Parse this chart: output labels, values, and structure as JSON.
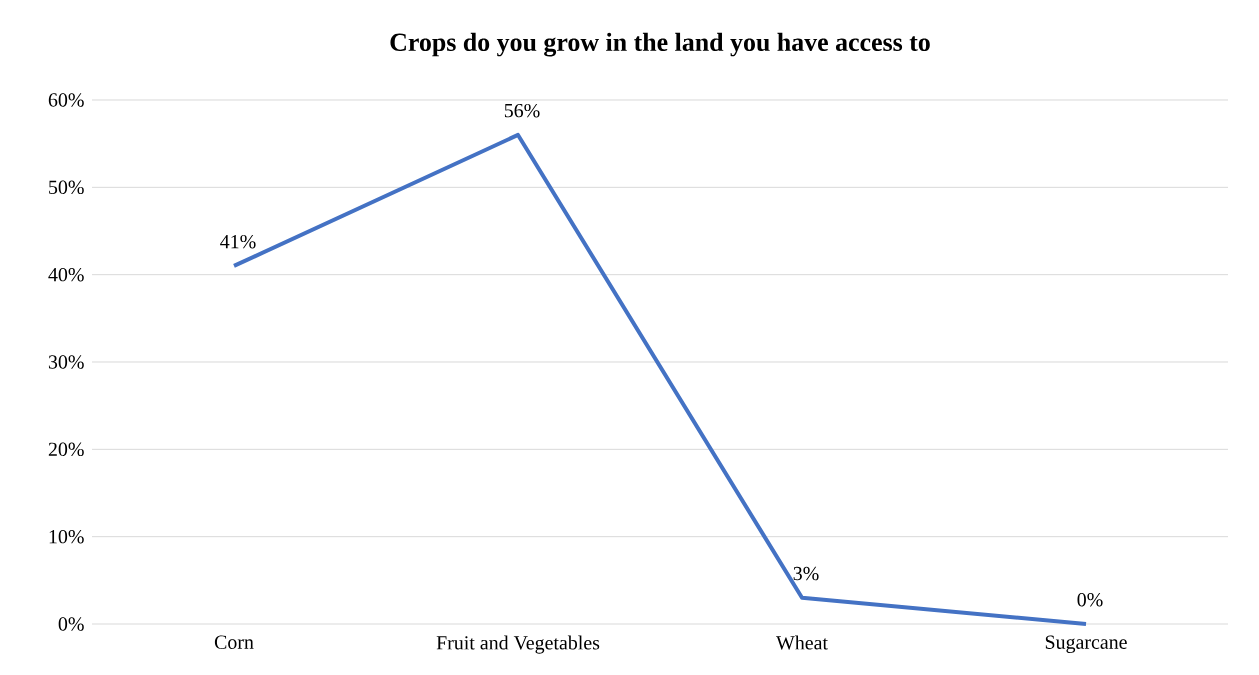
{
  "chart_data": {
    "type": "line",
    "title": "Crops do you grow in the land you have access to",
    "categories": [
      "Corn",
      "Fruit and Vegetables",
      "Wheat",
      "Sugarcane"
    ],
    "values": [
      41,
      56,
      3,
      0
    ],
    "color": "#4472c4",
    "value_labels": [
      "41%",
      "56%",
      "3%",
      "0%"
    ],
    "ylim": [
      0,
      60
    ],
    "yticks": [
      {
        "value": 0,
        "label": "0%"
      },
      {
        "value": 10,
        "label": "10%"
      },
      {
        "value": 20,
        "label": "20%"
      },
      {
        "value": 30,
        "label": "30%"
      },
      {
        "value": 40,
        "label": "40%"
      },
      {
        "value": 50,
        "label": "50%"
      },
      {
        "value": 60,
        "label": "60%"
      }
    ],
    "grid": "y"
  }
}
